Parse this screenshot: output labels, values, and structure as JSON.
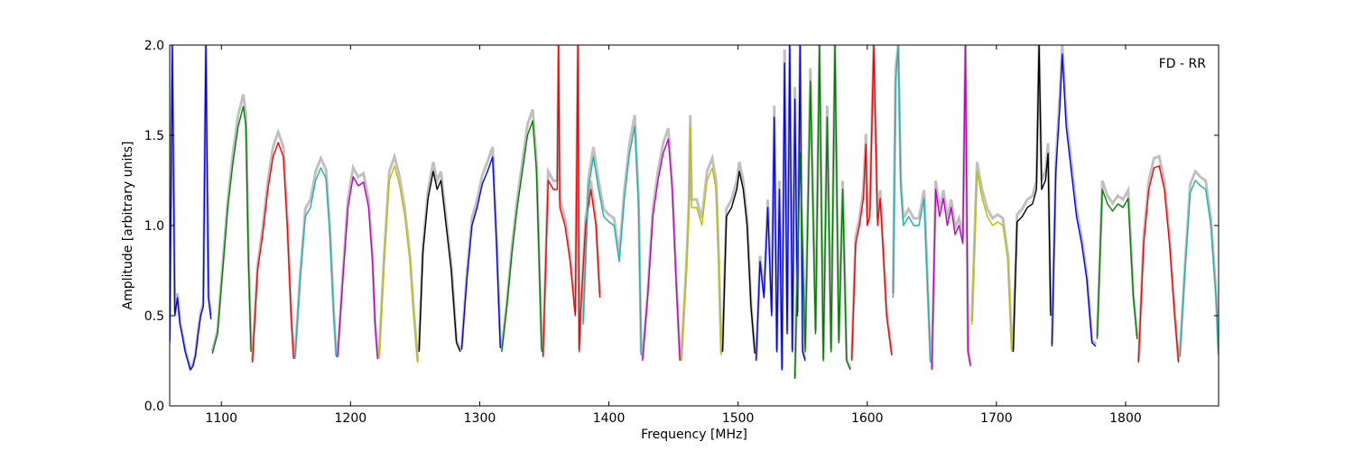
{
  "chart_data": {
    "type": "line",
    "title": "",
    "annotation": "FD - RR",
    "xlabel": "Frequency [MHz]",
    "ylabel": "Amplitude [arbitrary units]",
    "xlim": [
      1060,
      1872
    ],
    "ylim": [
      0.0,
      2.0
    ],
    "xticks": [
      1100,
      1200,
      1300,
      1400,
      1500,
      1600,
      1700,
      1800
    ],
    "yticks": [
      0.0,
      0.5,
      1.0,
      1.5,
      2.0
    ],
    "xtick_labels": [
      "1100",
      "1200",
      "1300",
      "1400",
      "1500",
      "1600",
      "1700",
      "1800"
    ],
    "ytick_labels": [
      "0.0",
      "0.5",
      "1.0",
      "1.5",
      "2.0"
    ],
    "grid": false,
    "legend": "none",
    "background_color": "#c0c0c0",
    "series": [
      {
        "color": "#0000ff",
        "x": [
          1060,
          1062,
          1064,
          1066,
          1068,
          1070,
          1072,
          1074,
          1076,
          1078,
          1080,
          1082,
          1084,
          1086,
          1088,
          1090,
          1092
        ],
        "y": [
          0.35,
          2.0,
          0.5,
          0.6,
          0.45,
          0.38,
          0.3,
          0.25,
          0.2,
          0.22,
          0.28,
          0.4,
          0.5,
          0.55,
          2.0,
          0.6,
          0.48
        ]
      },
      {
        "color": "#008000",
        "x": [
          1093,
          1097,
          1101,
          1105,
          1109,
          1113,
          1117,
          1119,
          1121,
          1123
        ],
        "y": [
          0.29,
          0.4,
          0.75,
          1.1,
          1.35,
          1.55,
          1.66,
          1.55,
          0.8,
          0.3
        ]
      },
      {
        "color": "#ff0000",
        "x": [
          1124,
          1128,
          1132,
          1136,
          1140,
          1144,
          1148,
          1151,
          1154,
          1156
        ],
        "y": [
          0.24,
          0.75,
          0.95,
          1.2,
          1.38,
          1.46,
          1.38,
          1.0,
          0.5,
          0.26
        ]
      },
      {
        "color": "#20b2aa",
        "x": [
          1157,
          1161,
          1165,
          1169,
          1173,
          1177,
          1181,
          1184,
          1187,
          1189
        ],
        "y": [
          0.26,
          0.7,
          1.05,
          1.1,
          1.25,
          1.32,
          1.26,
          0.95,
          0.5,
          0.27
        ]
      },
      {
        "color": "#bf00bf",
        "x": [
          1190,
          1194,
          1198,
          1202,
          1206,
          1210,
          1214,
          1217,
          1219,
          1221
        ],
        "y": [
          0.27,
          0.7,
          1.1,
          1.27,
          1.22,
          1.24,
          1.1,
          0.8,
          0.45,
          0.26
        ]
      },
      {
        "color": "#bfbf00",
        "x": [
          1222,
          1226,
          1230,
          1234,
          1238,
          1242,
          1246,
          1249,
          1252
        ],
        "y": [
          0.26,
          0.8,
          1.25,
          1.33,
          1.22,
          1.05,
          0.8,
          0.5,
          0.24
        ]
      },
      {
        "color": "#000000",
        "x": [
          1253,
          1256,
          1260,
          1264,
          1267,
          1270,
          1274,
          1278,
          1282,
          1285
        ],
        "y": [
          0.3,
          0.85,
          1.15,
          1.3,
          1.2,
          1.25,
          1.0,
          0.75,
          0.35,
          0.3
        ]
      },
      {
        "color": "#0000ff",
        "x": [
          1286,
          1290,
          1294,
          1298,
          1302,
          1306,
          1310,
          1313,
          1316
        ],
        "y": [
          0.31,
          0.7,
          1.0,
          1.1,
          1.23,
          1.3,
          1.38,
          0.9,
          0.32
        ]
      },
      {
        "color": "#008000",
        "x": [
          1317,
          1321,
          1325,
          1329,
          1333,
          1337,
          1341,
          1344,
          1348
        ],
        "y": [
          0.3,
          0.55,
          0.85,
          1.1,
          1.3,
          1.5,
          1.58,
          1.3,
          0.3
        ]
      },
      {
        "color": "#ff0000",
        "x": [
          1349,
          1353,
          1357,
          1360,
          1361,
          1362,
          1366,
          1370,
          1374,
          1376,
          1377,
          1378,
          1382,
          1386,
          1390,
          1393
        ],
        "y": [
          0.27,
          1.25,
          1.2,
          1.2,
          2.0,
          1.1,
          1.0,
          0.8,
          0.5,
          2.0,
          0.3,
          0.5,
          1.0,
          1.2,
          1.0,
          0.6
        ]
      },
      {
        "color": "#20b2aa",
        "x": [
          1380,
          1384,
          1388,
          1392,
          1396,
          1400,
          1404,
          1408,
          1412,
          1416,
          1420,
          1423,
          1425
        ],
        "y": [
          0.45,
          1.2,
          1.38,
          1.2,
          1.05,
          1.02,
          1.0,
          0.8,
          1.15,
          1.4,
          1.55,
          1.1,
          0.28
        ]
      },
      {
        "color": "#bf00bf",
        "x": [
          1426,
          1430,
          1434,
          1438,
          1442,
          1446,
          1449,
          1452,
          1455
        ],
        "y": [
          0.25,
          0.6,
          1.05,
          1.25,
          1.4,
          1.48,
          1.2,
          0.7,
          0.25
        ]
      },
      {
        "color": "#bfbf00",
        "x": [
          1456,
          1460,
          1462,
          1463,
          1464,
          1468,
          1472,
          1476,
          1480,
          1483,
          1485,
          1487
        ],
        "y": [
          0.25,
          0.75,
          1.1,
          1.55,
          1.1,
          1.1,
          1.0,
          1.25,
          1.32,
          1.2,
          0.8,
          0.28
        ]
      },
      {
        "color": "#000000",
        "x": [
          1488,
          1491,
          1495,
          1499,
          1501,
          1504,
          1507,
          1510,
          1513
        ],
        "y": [
          0.3,
          1.05,
          1.1,
          1.2,
          1.3,
          1.2,
          1.0,
          0.55,
          0.29
        ]
      },
      {
        "color": "#0000ff",
        "x": [
          1514,
          1517,
          1520,
          1523,
          1526,
          1528,
          1530,
          1532,
          1534,
          1536,
          1538,
          1540,
          1542,
          1544,
          1546,
          1548,
          1550,
          1552
        ],
        "y": [
          0.25,
          0.8,
          0.6,
          1.1,
          0.5,
          1.6,
          0.3,
          1.2,
          0.2,
          1.9,
          0.4,
          2.0,
          0.3,
          1.7,
          0.5,
          2.0,
          0.3,
          0.25
        ]
      },
      {
        "color": "#008000",
        "x": [
          1544,
          1548,
          1552,
          1556,
          1560,
          1563,
          1566,
          1569,
          1572,
          1575,
          1578,
          1581,
          1584,
          1587
        ],
        "y": [
          0.15,
          1.4,
          0.3,
          1.8,
          0.4,
          2.0,
          0.25,
          1.6,
          0.3,
          2.0,
          0.35,
          1.2,
          0.25,
          0.2
        ]
      },
      {
        "color": "#ff0000",
        "x": [
          1588,
          1591,
          1594,
          1597,
          1599,
          1600,
          1602,
          1605,
          1608,
          1610,
          1612,
          1615,
          1619
        ],
        "y": [
          0.25,
          0.9,
          1.0,
          1.15,
          1.45,
          1.0,
          1.05,
          2.0,
          1.0,
          1.15,
          0.9,
          0.5,
          0.28
        ]
      },
      {
        "color": "#20b2aa",
        "x": [
          1620,
          1622,
          1624,
          1626,
          1628,
          1632,
          1636,
          1640,
          1644,
          1647,
          1649
        ],
        "y": [
          0.6,
          1.8,
          2.0,
          1.2,
          1.0,
          1.05,
          1.0,
          1.0,
          1.15,
          0.6,
          0.24
        ]
      },
      {
        "color": "#bf00bf",
        "x": [
          1650,
          1653,
          1656,
          1659,
          1662,
          1665,
          1668,
          1671,
          1674,
          1676,
          1678,
          1680
        ],
        "y": [
          0.2,
          1.2,
          1.05,
          1.15,
          1.0,
          1.1,
          0.95,
          1.0,
          0.9,
          2.0,
          0.3,
          0.22
        ]
      },
      {
        "color": "#bfbf00",
        "x": [
          1681,
          1685,
          1689,
          1693,
          1697,
          1701,
          1705,
          1709,
          1712
        ],
        "y": [
          0.45,
          1.3,
          1.15,
          1.05,
          1.0,
          1.02,
          1.0,
          0.8,
          0.3
        ]
      },
      {
        "color": "#000000",
        "x": [
          1713,
          1716,
          1720,
          1724,
          1728,
          1731,
          1733,
          1735,
          1738,
          1740,
          1742
        ],
        "y": [
          0.3,
          1.02,
          1.05,
          1.1,
          1.12,
          1.2,
          2.0,
          1.2,
          1.25,
          1.4,
          0.5
        ]
      },
      {
        "color": "#0000ff",
        "x": [
          1743,
          1746,
          1749,
          1751,
          1754,
          1758,
          1762,
          1766,
          1770,
          1774,
          1777
        ],
        "y": [
          0.33,
          1.3,
          1.65,
          1.95,
          1.55,
          1.3,
          1.05,
          0.9,
          0.7,
          0.35,
          0.33
        ]
      },
      {
        "color": "#008000",
        "x": [
          1778,
          1782,
          1786,
          1790,
          1794,
          1798,
          1802,
          1806,
          1809
        ],
        "y": [
          0.37,
          1.2,
          1.12,
          1.08,
          1.12,
          1.1,
          1.15,
          0.6,
          0.37
        ]
      },
      {
        "color": "#ff0000",
        "x": [
          1810,
          1814,
          1818,
          1822,
          1826,
          1830,
          1834,
          1838,
          1841
        ],
        "y": [
          0.24,
          0.9,
          1.2,
          1.32,
          1.33,
          1.2,
          0.9,
          0.5,
          0.24
        ]
      },
      {
        "color": "#20b2aa",
        "x": [
          1842,
          1846,
          1850,
          1854,
          1858,
          1862,
          1866,
          1870,
          1872
        ],
        "y": [
          0.27,
          0.75,
          1.18,
          1.25,
          1.22,
          1.2,
          1.0,
          0.6,
          0.28
        ]
      }
    ]
  }
}
